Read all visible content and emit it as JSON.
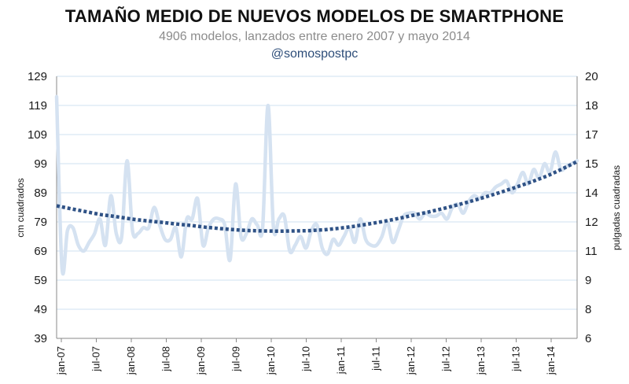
{
  "chart_data": {
    "type": "line",
    "title": "TAMAÑO MEDIO DE NUEVOS MODELOS DE SMARTPHONE",
    "subtitle": "4906 modelos, lanzados entre enero 2007 y mayo 2014",
    "credit": "@somospostpc",
    "ylabel": "cm cuadrados",
    "y2label": "pulgadas cuadradas",
    "ylim": [
      39,
      129
    ],
    "y2lim": [
      6,
      20
    ],
    "yticks": [
      "129",
      "119",
      "109",
      "99",
      "89",
      "79",
      "69",
      "59",
      "49",
      "39"
    ],
    "y2ticks": [
      "20",
      "18",
      "17",
      "15",
      "14",
      "12",
      "11",
      "9",
      "8",
      "6"
    ],
    "grid": true,
    "xticks": [
      "jan-07",
      "jul-07",
      "jan-08",
      "jul-08",
      "jan-09",
      "jul-09",
      "jan-10",
      "jul-10",
      "jan-11",
      "jul-11",
      "jan-12",
      "jul-12",
      "jan-13",
      "jul-13",
      "jan-14"
    ],
    "series": [
      {
        "color": "#d5e2f1",
        "style": "solid",
        "values": [
          122,
          63,
          76,
          77,
          71,
          69,
          72,
          75,
          80,
          71,
          88,
          75,
          74,
          100,
          76,
          75,
          77,
          77,
          84,
          78,
          73,
          73,
          77,
          67,
          80,
          80,
          87,
          71,
          77,
          80,
          80,
          78,
          66,
          92,
          74,
          75,
          80,
          78,
          77,
          119,
          77,
          80,
          81,
          69,
          71,
          74,
          70,
          76,
          78,
          70,
          68,
          73,
          71,
          74,
          77,
          72,
          80,
          73,
          71,
          71,
          74,
          79,
          72,
          76,
          81,
          82,
          82,
          80,
          82,
          81,
          81,
          82,
          80,
          84,
          85,
          82,
          86,
          88,
          87,
          89,
          89,
          91,
          92,
          93,
          89,
          92,
          96,
          92,
          97,
          94,
          99,
          96,
          103,
          97,
          98,
          99,
          100
        ]
      },
      {
        "color": "#2f5286",
        "style": "dotted",
        "values": [
          84.5,
          83.5,
          82.5,
          81.5,
          80.8,
          80.0,
          79.4,
          78.9,
          78.3,
          77.8,
          77.2,
          76.7,
          76.3,
          76.0,
          75.9,
          75.8,
          75.9,
          76.0,
          76.3,
          76.8,
          77.5,
          78.3,
          79.2,
          80.2,
          81.3,
          82.4,
          83.6,
          84.9,
          86.3,
          87.8,
          89.4,
          91.1,
          92.9,
          94.8,
          97.2,
          99.7
        ]
      }
    ]
  }
}
